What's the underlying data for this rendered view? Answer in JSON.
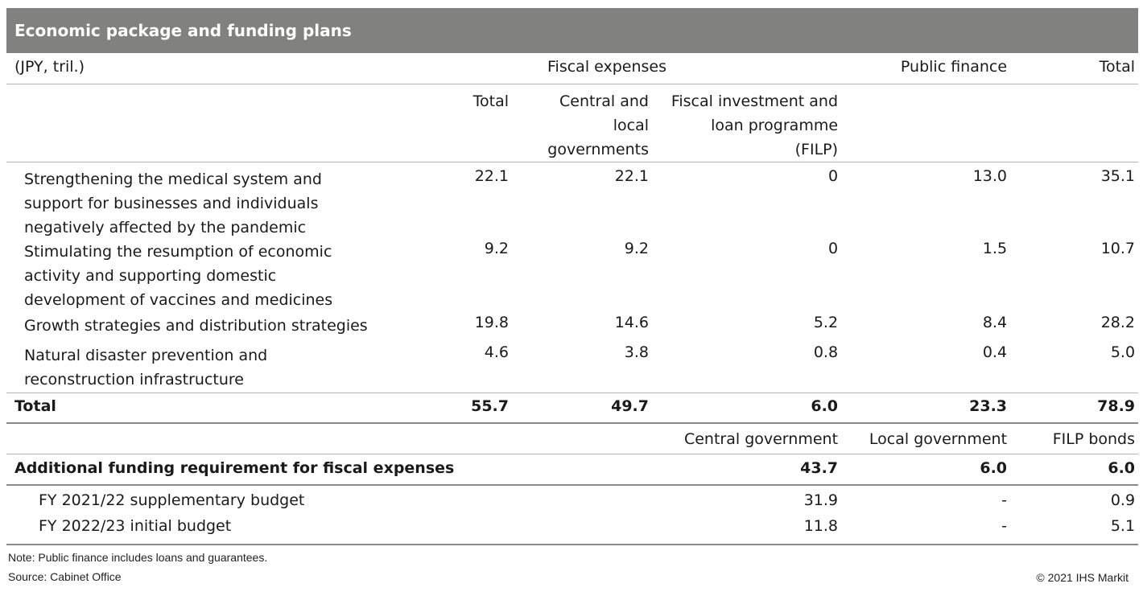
{
  "title": "Economic package and funding plans",
  "header": {
    "units": "(JPY, tril.)",
    "fiscal_expenses": "Fiscal expenses",
    "public_finance": "Public finance",
    "total": "Total",
    "sub_total": "Total",
    "sub_central_local": "Central and local governments",
    "sub_filp": "Fiscal investment and loan programme (FILP)"
  },
  "rows": [
    {
      "label": "Strengthening the medical system and support for businesses and individuals negatively affected by the pandemic",
      "total": "22.1",
      "central_local": "22.1",
      "filp": "0",
      "public_finance": "13.0",
      "grand_total": "35.1"
    },
    {
      "label": "Stimulating the resumption of economic activity and supporting domestic development of vaccines and medicines",
      "total": "9.2",
      "central_local": "9.2",
      "filp": "0",
      "public_finance": "1.5",
      "grand_total": "10.7"
    },
    {
      "label": "Growth strategies and distribution strategies",
      "total": "19.8",
      "central_local": "14.6",
      "filp": "5.2",
      "public_finance": "8.4",
      "grand_total": "28.2"
    },
    {
      "label": "Natural disaster prevention and reconstruction infrastructure",
      "total": "4.6",
      "central_local": "3.8",
      "filp": "0.8",
      "public_finance": "0.4",
      "grand_total": "5.0"
    }
  ],
  "totals": {
    "label": "Total",
    "total": "55.7",
    "central_local": "49.7",
    "filp": "6.0",
    "public_finance": "23.3",
    "grand_total": "78.9"
  },
  "funding_header": {
    "central": "Central government",
    "local": "Local government",
    "filp_bonds": "FILP bonds"
  },
  "funding_total": {
    "label": "Additional funding requirement for fiscal expenses",
    "central": "43.7",
    "local": "6.0",
    "filp_bonds": "6.0"
  },
  "funding_rows": [
    {
      "label": "FY 2021/22 supplementary budget",
      "central": "31.9",
      "local": "-",
      "filp_bonds": "0.9"
    },
    {
      "label": "FY 2022/23 initial budget",
      "central": "11.8",
      "local": "-",
      "filp_bonds": "5.1"
    }
  ],
  "footer": {
    "note": "Note: Public finance includes loans and guarantees.",
    "source": "Source: Cabinet Office",
    "copyright": "© 2021 IHS Markit"
  }
}
